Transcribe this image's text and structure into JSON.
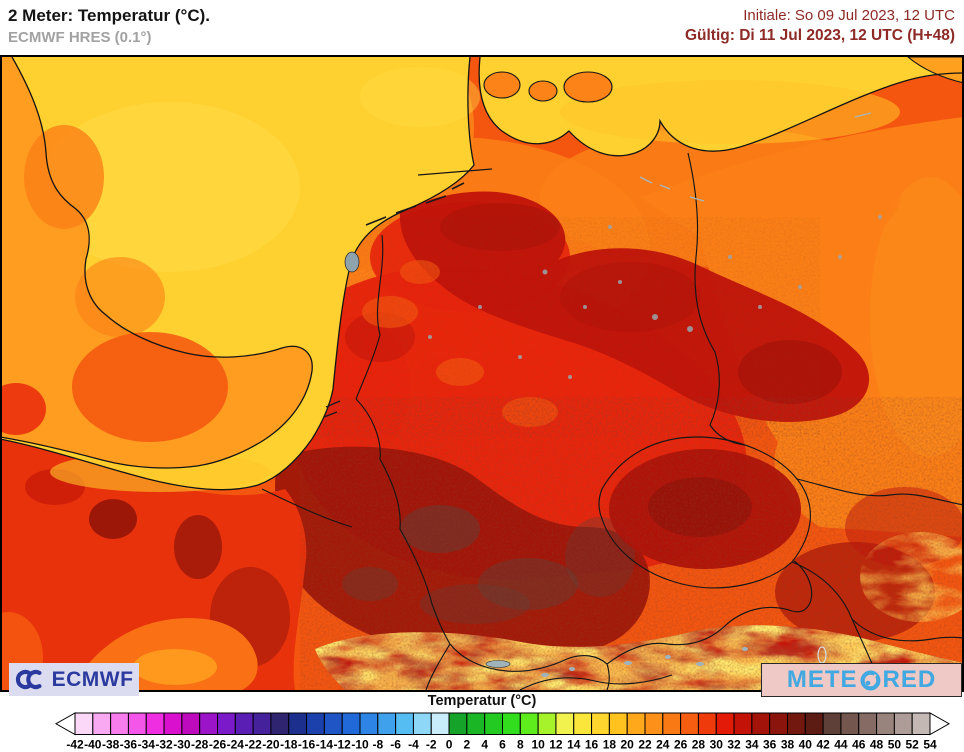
{
  "header": {
    "title": "2 Meter: Temperatur (°C).",
    "model": "ECMWF HRES (0.1°)",
    "init": "Initiale: So 09 Jul 2023, 12 UTC",
    "valid": "Gültig: Di 11 Jul 2023, 12 UTC (H+48)"
  },
  "logos": {
    "provider": "ECMWF",
    "brand": "METEORED",
    "brand_pre": "METE",
    "brand_post": "RED"
  },
  "colors": {
    "date_maroon": "#8d2a26",
    "model_gray": "#a2a2a2",
    "provider_blue": "#2b3a9e",
    "provider_bg": "#dcdcf0",
    "brand_blue": "#41a8e1",
    "brand_bg": "#efc9c6"
  },
  "chart_data": {
    "type": "heatmap",
    "title": "2 Meter: Temperatur (°C).",
    "model": "ECMWF HRES (0.1°)",
    "init_time": "So 09 Jul 2023, 12 UTC",
    "valid_time": "Di 11 Jul 2023, 12 UTC (H+48)",
    "lead": "H+48",
    "region": "Central Europe (Germany, Benelux, Denmark, Czechia, Poland, Alps, E. England, N. France)",
    "colorbar": {
      "label": "Temperatur (°C)",
      "unit": "°C",
      "min": -42,
      "max": 54,
      "step": 2,
      "ticks": [
        "-42",
        "-40",
        "-38",
        "-36",
        "-34",
        "-32",
        "-30",
        "-28",
        "-26",
        "-24",
        "-22",
        "-20",
        "-18",
        "-16",
        "-14",
        "-12",
        "-10",
        "-8",
        "-6",
        "-4",
        "-2",
        "0",
        "2",
        "4",
        "6",
        "8",
        "10",
        "12",
        "14",
        "16",
        "18",
        "20",
        "22",
        "24",
        "26",
        "28",
        "30",
        "32",
        "34",
        "36",
        "38",
        "40",
        "42",
        "44",
        "46",
        "48",
        "50",
        "52",
        "54"
      ],
      "colors": [
        "#fbd7f8",
        "#f9a8f2",
        "#f77cec",
        "#f356e8",
        "#ee2ee0",
        "#d910ce",
        "#bc0abc",
        "#9c14c8",
        "#7a1ac8",
        "#5a1eb4",
        "#45219b",
        "#2f2470",
        "#1c2f8c",
        "#1d41ac",
        "#1f55c4",
        "#2168d8",
        "#2e84e4",
        "#3fa0ec",
        "#55bdf2",
        "#8ed7f6",
        "#c8ecfa",
        "#16a32a",
        "#1bb626",
        "#23ca21",
        "#32dd1d",
        "#5fec1c",
        "#a7f32b",
        "#f2f24f",
        "#fbe63c",
        "#ffd62e",
        "#ffc21f",
        "#ffa81c",
        "#fc9018",
        "#f97a14",
        "#f55e10",
        "#ef3b0c",
        "#e31a07",
        "#c31208",
        "#a41309",
        "#8b150c",
        "#73180f",
        "#5c1b13",
        "#5e4038",
        "#73564e",
        "#866b64",
        "#99837d",
        "#ad9c98",
        "#c4b8b5"
      ]
    },
    "field_estimates_c": {
      "north_sea": 21,
      "baltic_sea": 22,
      "uk_east_coast": 25,
      "netherlands_coast": 26,
      "nw_germany": 29,
      "ne_germany_poland_border": 31,
      "central_germany": 31,
      "sw_germany_upper_rhine": 34,
      "czechia": 32,
      "poland": 27,
      "n_france": 30,
      "paris_basin": 34,
      "alps_valleys": 22,
      "alps_high_terrain": 12
    }
  }
}
